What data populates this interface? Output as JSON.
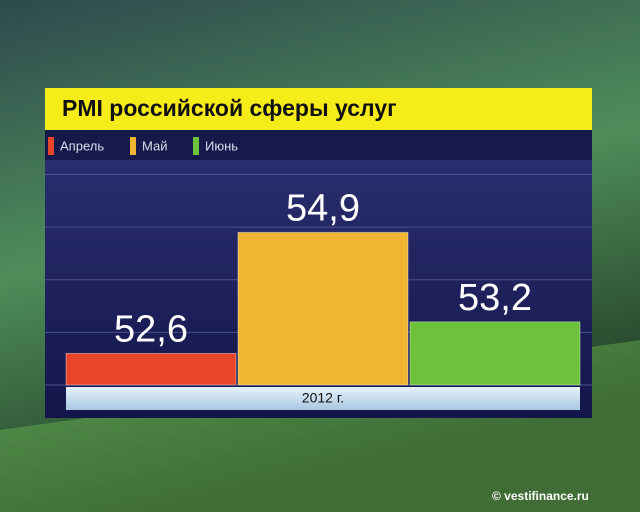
{
  "chart_data": {
    "type": "bar",
    "title": "PMI российской сферы услуг",
    "categories": [
      "2012 г."
    ],
    "series": [
      {
        "name": "Апрель",
        "color": "#e8452a",
        "values": [
          52.6
        ],
        "value_labels": [
          "52,6"
        ]
      },
      {
        "name": "Май",
        "color": "#f0b632",
        "values": [
          54.9
        ],
        "value_labels": [
          "54,9"
        ]
      },
      {
        "name": "Июнь",
        "color": "#6cc23a",
        "values": [
          53.2
        ],
        "value_labels": [
          "53,2"
        ]
      }
    ],
    "ylim": [
      52,
      56.2
    ],
    "yticks": [
      52,
      53,
      54,
      55,
      56
    ],
    "grid": true,
    "watermark": "© vestifinance.ru"
  }
}
